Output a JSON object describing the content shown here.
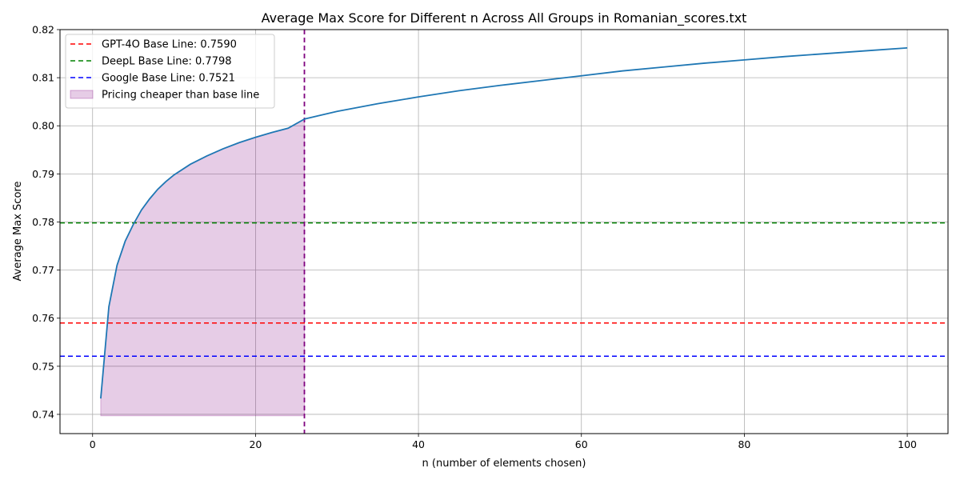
{
  "chart_data": {
    "type": "line",
    "title": "Average Max Score for Different n Across All Groups in Romanian_scores.txt",
    "xlabel": "n (number of elements chosen)",
    "ylabel": "Average Max Score",
    "xlim": [
      -4,
      105
    ],
    "ylim": [
      0.736,
      0.82
    ],
    "xticks": [
      0,
      20,
      40,
      60,
      80,
      100
    ],
    "yticks": [
      0.74,
      0.75,
      0.76,
      0.77,
      0.78,
      0.79,
      0.8,
      0.81,
      0.82
    ],
    "xtick_labels": [
      "0",
      "20",
      "40",
      "60",
      "80",
      "100"
    ],
    "ytick_labels": [
      "0.74",
      "0.75",
      "0.76",
      "0.77",
      "0.78",
      "0.79",
      "0.80",
      "0.81",
      "0.82"
    ],
    "grid": true,
    "legend_position": "upper-left",
    "series": [
      {
        "kind": "curve",
        "color": "#1f77b4",
        "x": [
          1,
          2,
          3,
          4,
          5,
          6,
          7,
          8,
          9,
          10,
          12,
          14,
          16,
          18,
          20,
          22,
          24,
          26,
          28,
          30,
          35,
          40,
          45,
          50,
          55,
          60,
          65,
          70,
          75,
          80,
          85,
          90,
          95,
          100
        ],
        "y": [
          0.7433,
          0.7624,
          0.771,
          0.776,
          0.7795,
          0.7825,
          0.7848,
          0.7868,
          0.7884,
          0.7898,
          0.792,
          0.7937,
          0.7952,
          0.7965,
          0.7976,
          0.7986,
          0.7995,
          0.8014,
          0.8022,
          0.803,
          0.8046,
          0.806,
          0.8073,
          0.8084,
          0.8094,
          0.8104,
          0.8114,
          0.8122,
          0.813,
          0.8137,
          0.8144,
          0.815,
          0.8156,
          0.8162
        ]
      },
      {
        "kind": "hline",
        "name": "GPT-4O Base Line: 0.7590",
        "y": 0.759,
        "color": "#ff0000"
      },
      {
        "kind": "hline",
        "name": "DeepL Base Line: 0.7798",
        "y": 0.7798,
        "color": "#008000"
      },
      {
        "kind": "hline",
        "name": "Google Base Line: 0.7521",
        "y": 0.7521,
        "color": "#0000ff"
      },
      {
        "kind": "vline",
        "x": 26,
        "color": "#800080"
      },
      {
        "kind": "fill",
        "name": "Pricing cheaper than base line",
        "x_from": 1,
        "x_to": 26,
        "y_base": 0.7397,
        "color": "#800080",
        "opacity": 0.2
      }
    ]
  }
}
